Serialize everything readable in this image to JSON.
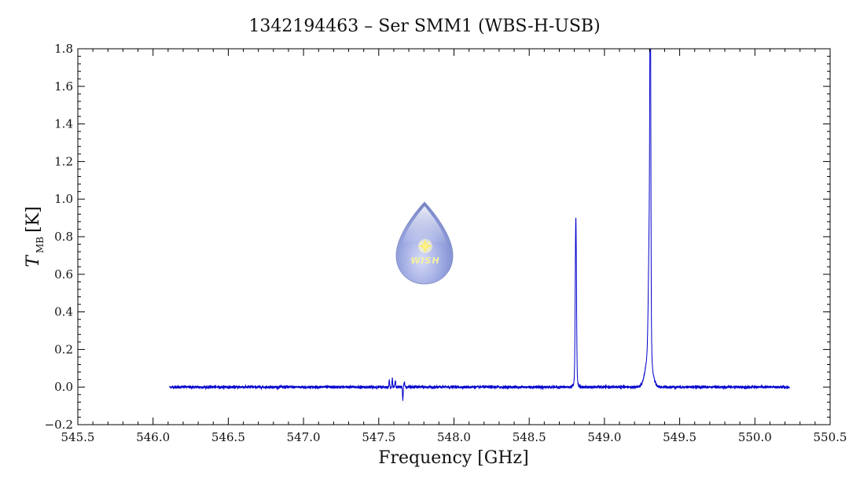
{
  "chart_data": {
    "type": "line",
    "title": "1342194463 – Ser SMM1 (WBS-H-USB)",
    "xlabel": "Frequency [GHz]",
    "ylabel_main": "T",
    "ylabel_sub": "MB",
    "ylabel_unit": "[K]",
    "xlim": [
      545.5,
      550.5
    ],
    "ylim": [
      -0.2,
      1.8
    ],
    "xticks": [
      "545.5",
      "546.0",
      "546.5",
      "547.0",
      "547.5",
      "548.0",
      "548.5",
      "549.0",
      "549.5",
      "550.0",
      "550.5"
    ],
    "yticks": [
      "−0.2",
      "0.0",
      "0.2",
      "0.4",
      "0.6",
      "0.8",
      "1.0",
      "1.2",
      "1.4",
      "1.6",
      "1.8"
    ],
    "grid": false,
    "series_color": "#0000cc",
    "x_start": 546.11,
    "x_end": 550.23,
    "noise_rms": 0.004,
    "features": [
      {
        "center": 548.81,
        "peak": 0.86,
        "width": 0.004
      },
      {
        "center": 548.81,
        "peak": 0.04,
        "width": 0.012
      },
      {
        "center": 549.305,
        "peak": 1.7,
        "width": 0.003
      },
      {
        "center": 549.3,
        "peak": 0.74,
        "width": 0.007
      },
      {
        "center": 549.295,
        "peak": 0.17,
        "width": 0.022
      },
      {
        "center": 547.57,
        "peak": 0.04,
        "width": 0.002
      },
      {
        "center": 547.59,
        "peak": 0.05,
        "width": 0.002
      },
      {
        "center": 547.61,
        "peak": 0.03,
        "width": 0.003
      },
      {
        "center": 547.66,
        "peak": -0.07,
        "width": 0.002
      },
      {
        "center": 547.67,
        "peak": 0.025,
        "width": 0.003
      }
    ]
  },
  "logo": {
    "text": "WISH"
  }
}
